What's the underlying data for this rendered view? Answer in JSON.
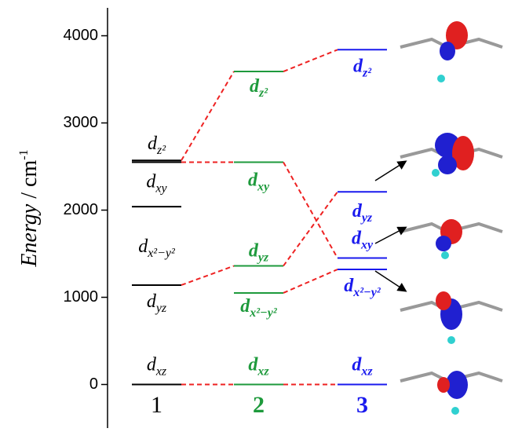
{
  "chart_data": {
    "type": "energy_levels",
    "y_label": {
      "main": "Energy",
      "unit": "/ cm",
      "sup": "-1"
    },
    "ylim": [
      -500,
      4320
    ],
    "yticks": [
      0,
      1000,
      2000,
      3000,
      4000
    ],
    "connector_color": "#ee2222",
    "series": [
      {
        "name": "1",
        "color": "#000000",
        "bold": false,
        "values": [
          0,
          1140,
          2040,
          2550,
          2570
        ],
        "labels": [
          {
            "main": "d",
            "sub": "xz"
          },
          {
            "main": "d",
            "sub": "yz"
          },
          {
            "main": "d",
            "sub": "x²−y²"
          },
          {
            "main": "d",
            "sub": "xy"
          },
          {
            "main": "d",
            "sub": "z²"
          }
        ],
        "linked": [
          true,
          true,
          false,
          true,
          true
        ]
      },
      {
        "name": "2",
        "color": "#1e9a3c",
        "bold": true,
        "values": [
          0,
          1050,
          1360,
          2550,
          3590
        ],
        "labels": [
          {
            "main": "d",
            "sub": "xz"
          },
          {
            "main": "d",
            "sub": "x²−y²"
          },
          {
            "main": "d",
            "sub": "yz"
          },
          {
            "main": "d",
            "sub": "xy"
          },
          {
            "main": "d",
            "sub": "z²"
          }
        ],
        "linked": [
          true,
          true,
          true,
          true,
          true
        ]
      },
      {
        "name": "3",
        "color": "#1a1aee",
        "bold": true,
        "values": [
          0,
          1320,
          1450,
          2210,
          3840
        ],
        "labels": [
          {
            "main": "d",
            "sub": "xz"
          },
          {
            "main": "d",
            "sub": "x²−y²"
          },
          {
            "main": "d",
            "sub": "xy"
          },
          {
            "main": "d",
            "sub": "yz"
          },
          {
            "main": "d",
            "sub": "z²"
          }
        ],
        "linked": [
          false,
          false,
          false,
          false,
          false
        ]
      }
    ]
  }
}
